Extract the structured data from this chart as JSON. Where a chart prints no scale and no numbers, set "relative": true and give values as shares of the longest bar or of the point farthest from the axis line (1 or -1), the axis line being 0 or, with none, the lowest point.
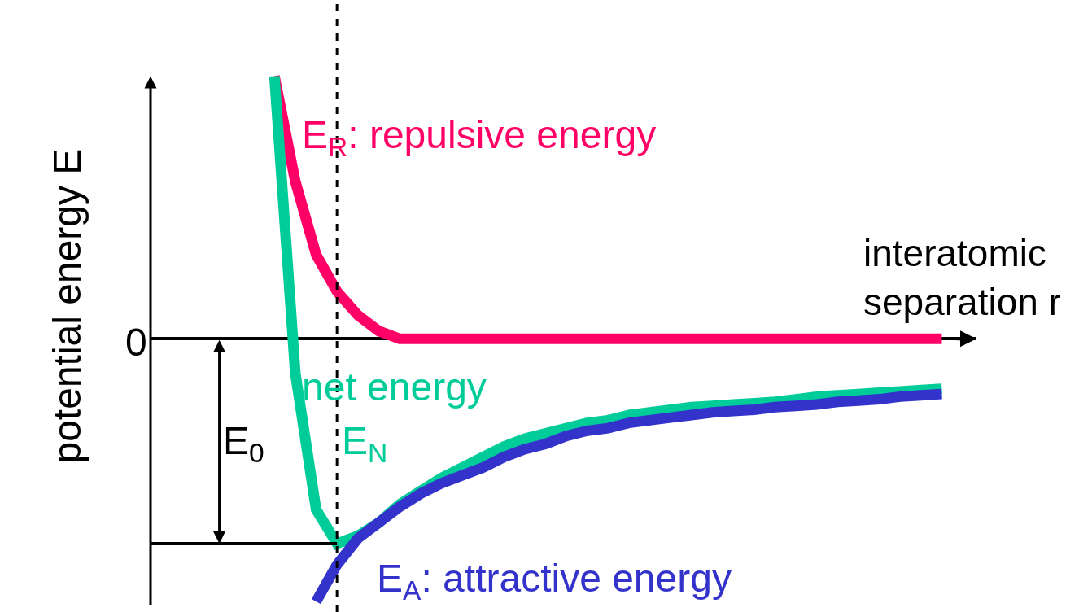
{
  "chart_data": {
    "type": "line",
    "relative": true,
    "marker": "none",
    "line_style": "solid",
    "xlabel": "interatomic\nseparation r",
    "ylabel": "potential energy E",
    "categories": [
      null,
      null,
      null,
      null,
      null,
      null,
      null,
      null,
      null,
      null,
      null,
      null,
      null,
      null,
      null,
      null,
      null,
      null,
      null,
      null,
      null,
      null,
      null,
      null,
      null,
      null,
      null,
      null,
      null,
      null,
      null,
      null,
      null
    ],
    "series": [
      {
        "color": "#ff0066",
        "values": [
          1.0,
          0.6,
          0.32,
          0.18,
          0.09,
          0.03,
          0,
          0,
          0,
          0,
          0,
          0,
          0,
          0,
          0,
          0,
          0,
          0,
          0,
          0,
          0,
          0,
          0,
          0,
          0,
          0,
          0,
          0,
          0,
          0,
          0,
          0,
          0
        ]
      },
      {
        "color": "#00cc99",
        "values": [
          1.0,
          -0.13,
          -0.65,
          -0.78,
          -0.75,
          -0.7,
          -0.63,
          -0.58,
          -0.53,
          -0.49,
          -0.45,
          -0.41,
          -0.38,
          -0.36,
          -0.34,
          -0.32,
          -0.31,
          -0.29,
          -0.28,
          -0.27,
          -0.26,
          -0.255,
          -0.25,
          -0.245,
          -0.24,
          -0.23,
          -0.22,
          -0.215,
          -0.21,
          -0.205,
          -0.2,
          -0.195,
          -0.19
        ]
      },
      {
        "color": "#3333cc",
        "values": [
          null,
          null,
          -1.0,
          -0.86,
          -0.76,
          -0.7,
          -0.64,
          -0.59,
          -0.55,
          -0.52,
          -0.49,
          -0.45,
          -0.42,
          -0.4,
          -0.37,
          -0.35,
          -0.34,
          -0.32,
          -0.31,
          -0.3,
          -0.29,
          -0.28,
          -0.275,
          -0.27,
          -0.26,
          -0.255,
          -0.25,
          -0.24,
          -0.235,
          -0.23,
          -0.22,
          -0.215,
          -0.21
        ]
      }
    ],
    "ref_lines": [
      {
        "axis": "y",
        "value": -0.78,
        "line_style": "solid",
        "color": "#000000"
      }
    ],
    "annotations": [
      "0",
      "E$_{R}$: repulsive energy",
      "net energy",
      "E$_{N}$",
      "E$_{0}$",
      "E$_{A}$: attractive energy"
    ]
  }
}
